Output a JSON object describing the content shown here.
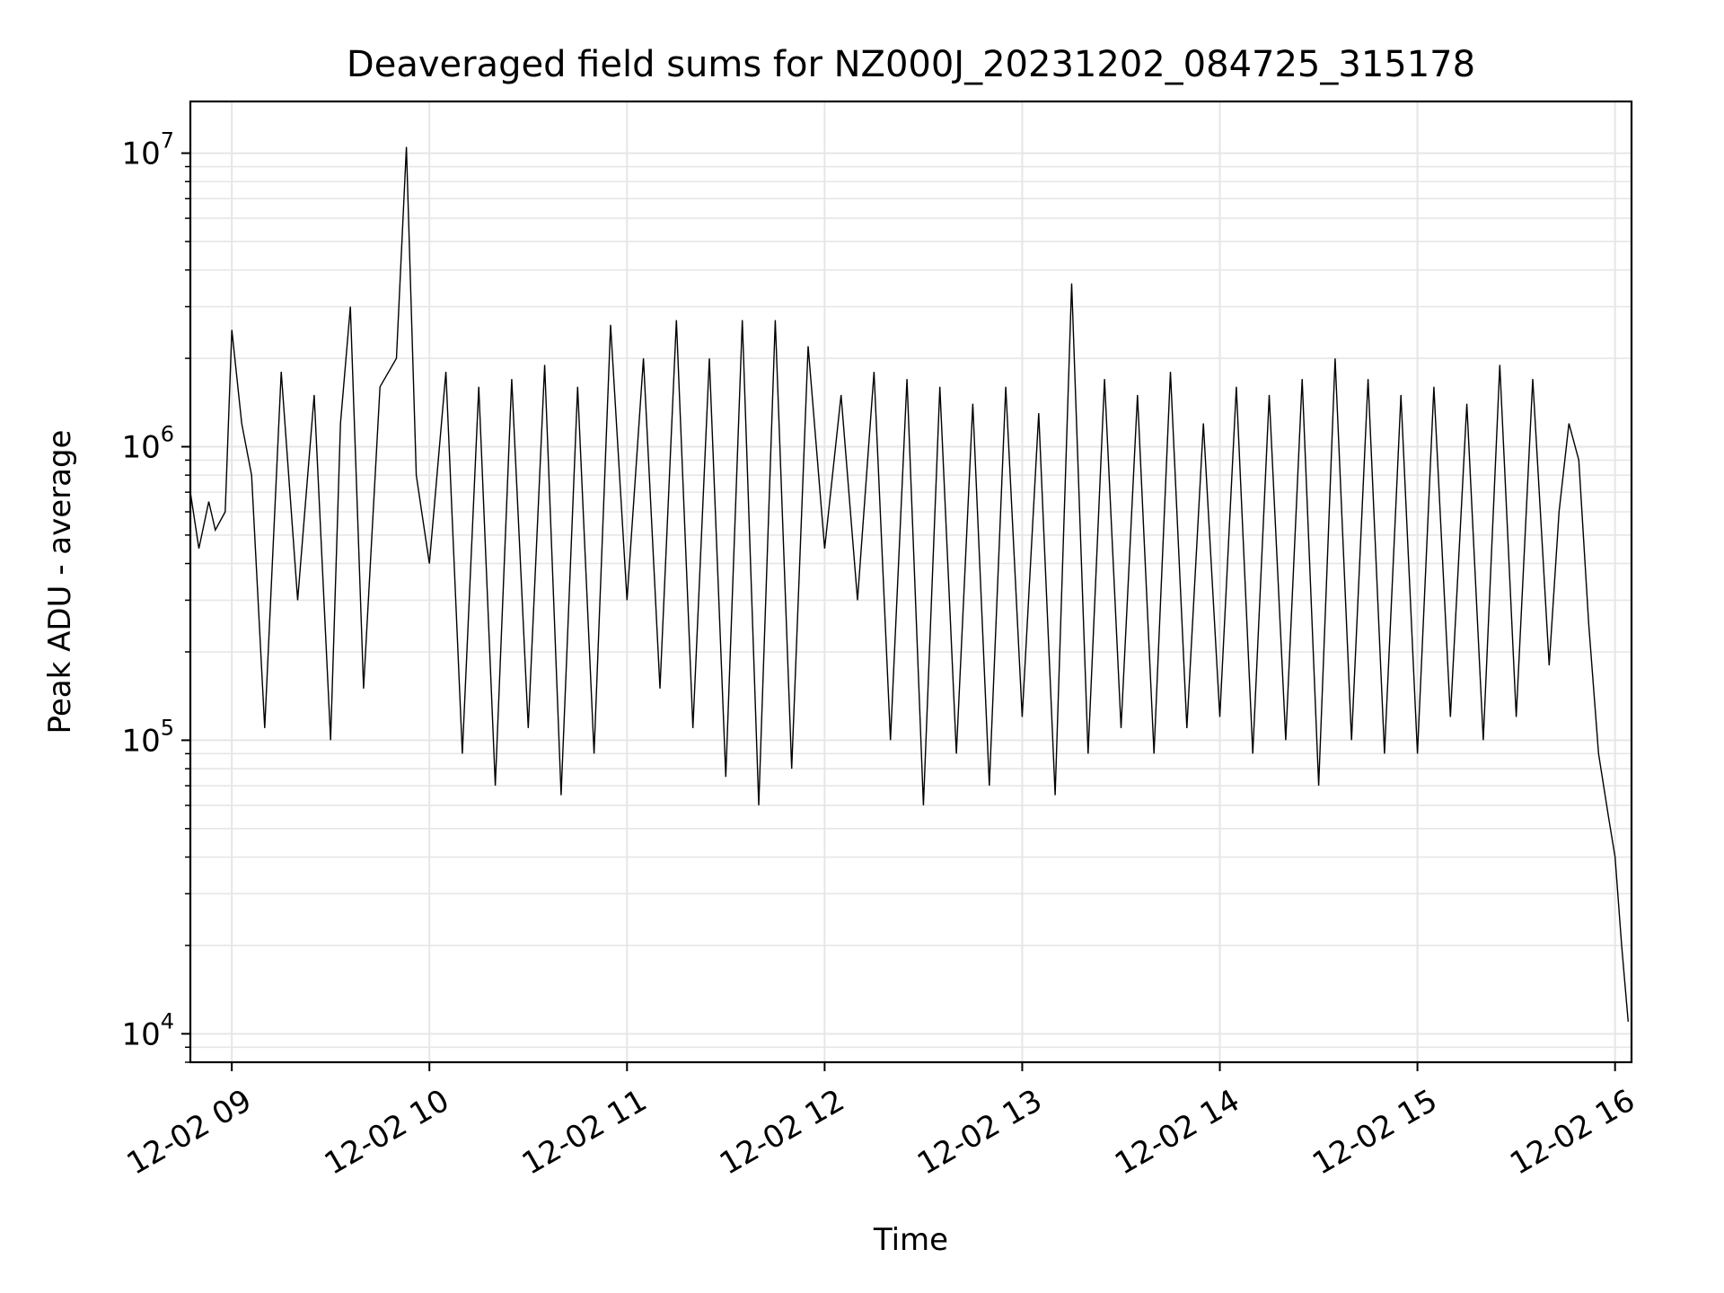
{
  "chart_data": {
    "type": "line",
    "title": "Deaveraged field sums for NZ000J_20231202_084725_315178",
    "xlabel": "Time",
    "ylabel": "Peak ADU - average",
    "y_scale": "log",
    "grid": true,
    "grid_minor": true,
    "line_color": "#000000",
    "grid_color": "#e6e6e6",
    "xlim": [
      "2023-12-02 08:47:25",
      "2023-12-02 16:05:00"
    ],
    "ylim": [
      8000,
      15000000
    ],
    "x_ticks": [
      {
        "time": "2023-12-02 09:00",
        "label": "12-02 09"
      },
      {
        "time": "2023-12-02 10:00",
        "label": "12-02 10"
      },
      {
        "time": "2023-12-02 11:00",
        "label": "12-02 11"
      },
      {
        "time": "2023-12-02 12:00",
        "label": "12-02 12"
      },
      {
        "time": "2023-12-02 13:00",
        "label": "12-02 13"
      },
      {
        "time": "2023-12-02 14:00",
        "label": "12-02 14"
      },
      {
        "time": "2023-12-02 15:00",
        "label": "12-02 15"
      },
      {
        "time": "2023-12-02 16:00",
        "label": "12-02 16"
      }
    ],
    "y_ticks": [
      {
        "value": 10000,
        "base": "10",
        "exp": "4"
      },
      {
        "value": 100000,
        "base": "10",
        "exp": "5"
      },
      {
        "value": 1000000,
        "base": "10",
        "exp": "6"
      },
      {
        "value": 10000000,
        "base": "10",
        "exp": "7"
      }
    ],
    "series": [
      {
        "x": [
          "2023-12-02 08:47:25",
          "2023-12-02 08:50",
          "2023-12-02 08:53",
          "2023-12-02 08:55",
          "2023-12-02 08:58",
          "2023-12-02 09:00",
          "2023-12-02 09:03",
          "2023-12-02 09:06",
          "2023-12-02 09:10",
          "2023-12-02 09:15",
          "2023-12-02 09:20",
          "2023-12-02 09:25",
          "2023-12-02 09:30",
          "2023-12-02 09:33",
          "2023-12-02 09:36",
          "2023-12-02 09:40",
          "2023-12-02 09:45",
          "2023-12-02 09:50",
          "2023-12-02 09:53",
          "2023-12-02 09:56",
          "2023-12-02 10:00",
          "2023-12-02 10:05",
          "2023-12-02 10:10",
          "2023-12-02 10:15",
          "2023-12-02 10:20",
          "2023-12-02 10:25",
          "2023-12-02 10:30",
          "2023-12-02 10:35",
          "2023-12-02 10:40",
          "2023-12-02 10:45",
          "2023-12-02 10:50",
          "2023-12-02 10:55",
          "2023-12-02 11:00",
          "2023-12-02 11:05",
          "2023-12-02 11:10",
          "2023-12-02 11:15",
          "2023-12-02 11:20",
          "2023-12-02 11:25",
          "2023-12-02 11:30",
          "2023-12-02 11:35",
          "2023-12-02 11:40",
          "2023-12-02 11:45",
          "2023-12-02 11:50",
          "2023-12-02 11:55",
          "2023-12-02 12:00",
          "2023-12-02 12:05",
          "2023-12-02 12:10",
          "2023-12-02 12:15",
          "2023-12-02 12:20",
          "2023-12-02 12:25",
          "2023-12-02 12:30",
          "2023-12-02 12:35",
          "2023-12-02 12:40",
          "2023-12-02 12:45",
          "2023-12-02 12:50",
          "2023-12-02 12:55",
          "2023-12-02 13:00",
          "2023-12-02 13:05",
          "2023-12-02 13:10",
          "2023-12-02 13:15",
          "2023-12-02 13:20",
          "2023-12-02 13:25",
          "2023-12-02 13:30",
          "2023-12-02 13:35",
          "2023-12-02 13:40",
          "2023-12-02 13:45",
          "2023-12-02 13:50",
          "2023-12-02 13:55",
          "2023-12-02 14:00",
          "2023-12-02 14:05",
          "2023-12-02 14:10",
          "2023-12-02 14:15",
          "2023-12-02 14:20",
          "2023-12-02 14:25",
          "2023-12-02 14:30",
          "2023-12-02 14:35",
          "2023-12-02 14:40",
          "2023-12-02 14:45",
          "2023-12-02 14:50",
          "2023-12-02 14:55",
          "2023-12-02 15:00",
          "2023-12-02 15:05",
          "2023-12-02 15:10",
          "2023-12-02 15:15",
          "2023-12-02 15:20",
          "2023-12-02 15:25",
          "2023-12-02 15:30",
          "2023-12-02 15:35",
          "2023-12-02 15:40",
          "2023-12-02 15:43",
          "2023-12-02 15:46",
          "2023-12-02 15:49",
          "2023-12-02 15:52",
          "2023-12-02 15:55",
          "2023-12-02 15:58",
          "2023-12-02 16:00",
          "2023-12-02 16:02",
          "2023-12-02 16:04"
        ],
        "y": [
          700000,
          450000,
          650000,
          520000,
          600000,
          2500000,
          1200000,
          800000,
          110000,
          1800000,
          300000,
          1500000,
          100000,
          1200000,
          3000000,
          150000,
          1600000,
          2000000,
          10500000,
          800000,
          400000,
          1800000,
          90000,
          1600000,
          70000,
          1700000,
          110000,
          1900000,
          65000,
          1600000,
          90000,
          2600000,
          300000,
          2000000,
          150000,
          2700000,
          110000,
          2000000,
          75000,
          2700000,
          60000,
          2700000,
          80000,
          2200000,
          450000,
          1500000,
          300000,
          1800000,
          100000,
          1700000,
          60000,
          1600000,
          90000,
          1400000,
          70000,
          1600000,
          120000,
          1300000,
          65000,
          3600000,
          90000,
          1700000,
          110000,
          1500000,
          90000,
          1800000,
          110000,
          1200000,
          120000,
          1600000,
          90000,
          1500000,
          100000,
          1700000,
          70000,
          2000000,
          100000,
          1700000,
          90000,
          1500000,
          90000,
          1600000,
          120000,
          1400000,
          100000,
          1900000,
          120000,
          1700000,
          180000,
          600000,
          1200000,
          900000,
          250000,
          90000,
          55000,
          40000,
          20000,
          11000
        ]
      }
    ]
  }
}
